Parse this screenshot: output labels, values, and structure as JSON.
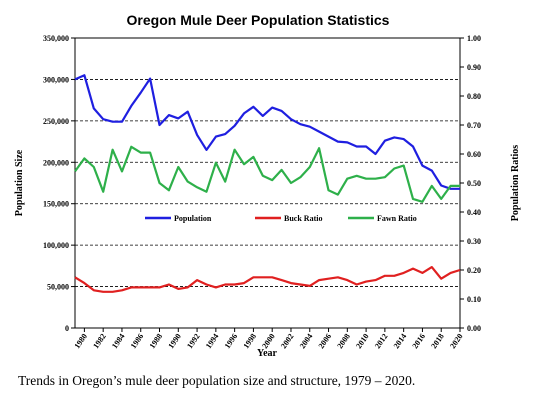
{
  "chart_data": {
    "type": "line",
    "title": "Oregon Mule Deer Population Statistics",
    "xlabel": "Year",
    "ylabel": "Population Size",
    "y2label": "Population Ratios",
    "xlim": [
      1979,
      2020
    ],
    "ylim": [
      0,
      350000
    ],
    "y2lim": [
      0,
      1
    ],
    "x_ticks": [
      "1980",
      "1982",
      "1984",
      "1986",
      "1988",
      "1990",
      "1992",
      "1994",
      "1996",
      "1998",
      "2000",
      "2002",
      "2004",
      "2006",
      "2008",
      "2010",
      "2012",
      "2014",
      "2016",
      "2018",
      "2020"
    ],
    "y_ticks": [
      "0",
      "50,000",
      "100,000",
      "150,000",
      "200,000",
      "250,000",
      "300,000",
      "350,000"
    ],
    "y2_ticks": [
      "0.00",
      "0.10",
      "0.20",
      "0.30",
      "0.40",
      "0.50",
      "0.60",
      "0.70",
      "0.80",
      "0.90",
      "1.00"
    ],
    "grid": "horizontal dashed",
    "legend_position": "center",
    "x": [
      1979,
      1980,
      1981,
      1982,
      1983,
      1984,
      1985,
      1986,
      1987,
      1988,
      1989,
      1990,
      1991,
      1992,
      1993,
      1994,
      1995,
      1996,
      1997,
      1998,
      1999,
      2000,
      2001,
      2002,
      2003,
      2004,
      2005,
      2006,
      2007,
      2008,
      2009,
      2010,
      2011,
      2012,
      2013,
      2014,
      2015,
      2016,
      2017,
      2018,
      2019,
      2020
    ],
    "series": [
      {
        "name": "Population",
        "axis": "left",
        "color": "#1f1fe0",
        "values": [
          300000,
          305000,
          265000,
          252000,
          249000,
          249000,
          268000,
          284000,
          301000,
          245000,
          257000,
          253000,
          261000,
          233000,
          215000,
          231000,
          234000,
          244000,
          259000,
          267000,
          256000,
          266000,
          262000,
          252000,
          246000,
          243000,
          237000,
          231000,
          225000,
          224000,
          219000,
          219000,
          210000,
          226000,
          230000,
          228000,
          219000,
          196000,
          190000,
          172000,
          168000,
          168000
        ]
      },
      {
        "name": "Buck Ratio",
        "axis": "right",
        "color": "#e02020",
        "values": [
          0.175,
          0.155,
          0.13,
          0.125,
          0.125,
          0.13,
          0.14,
          0.14,
          0.14,
          0.14,
          0.15,
          0.135,
          0.14,
          0.165,
          0.15,
          0.14,
          0.15,
          0.15,
          0.155,
          0.175,
          0.175,
          0.175,
          0.165,
          0.155,
          0.15,
          0.145,
          0.165,
          0.17,
          0.175,
          0.165,
          0.15,
          0.16,
          0.165,
          0.18,
          0.18,
          0.19,
          0.205,
          0.19,
          0.21,
          0.17,
          0.19,
          0.2
        ]
      },
      {
        "name": "Fawn Ratio",
        "axis": "right",
        "color": "#2eb04a",
        "values": [
          0.54,
          0.585,
          0.555,
          0.47,
          0.615,
          0.54,
          0.625,
          0.605,
          0.605,
          0.5,
          0.475,
          0.555,
          0.505,
          0.485,
          0.47,
          0.57,
          0.505,
          0.615,
          0.565,
          0.59,
          0.525,
          0.51,
          0.545,
          0.5,
          0.52,
          0.555,
          0.62,
          0.475,
          0.46,
          0.515,
          0.525,
          0.515,
          0.515,
          0.52,
          0.55,
          0.56,
          0.445,
          0.435,
          0.49,
          0.445,
          0.49,
          0.49
        ]
      }
    ],
    "caption": "Trends in Oregon’s mule deer population size and structure, 1979 – 2020."
  }
}
